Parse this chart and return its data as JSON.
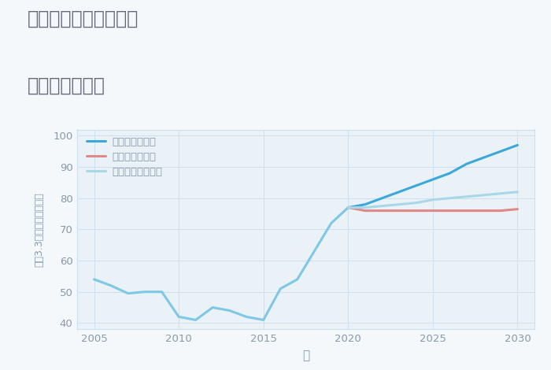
{
  "title_line1": "埼玉県八潮市木曽根の",
  "title_line2": "土地の価格推移",
  "xlabel": "年",
  "ylabel": "坪（3.3㎡）単価（万円）",
  "bg_color": "#f4f8fb",
  "plot_bg_color": "#eaf2f8",
  "grid_color": "#cce0ee",
  "historical_years": [
    2005,
    2006,
    2007,
    2008,
    2009,
    2010,
    2011,
    2012,
    2013,
    2014,
    2015,
    2016,
    2017,
    2018,
    2019,
    2020
  ],
  "historical_values": [
    54,
    52,
    49.5,
    50,
    50,
    42,
    41,
    45,
    44,
    42,
    41,
    51,
    54,
    63,
    72,
    77
  ],
  "good_years": [
    2020,
    2021,
    2022,
    2023,
    2024,
    2025,
    2026,
    2027,
    2028,
    2029,
    2030
  ],
  "good_values": [
    77,
    78,
    80,
    82,
    84,
    86,
    88,
    91,
    93,
    95,
    97
  ],
  "bad_years": [
    2020,
    2021,
    2022,
    2023,
    2024,
    2025,
    2026,
    2027,
    2028,
    2029,
    2030
  ],
  "bad_values": [
    77,
    76,
    76,
    76,
    76,
    76,
    76,
    76,
    76,
    76,
    76.5
  ],
  "normal_years": [
    2020,
    2021,
    2022,
    2023,
    2024,
    2025,
    2026,
    2027,
    2028,
    2029,
    2030
  ],
  "normal_values": [
    77,
    77,
    77.5,
    78,
    78.5,
    79.5,
    80,
    80.5,
    81,
    81.5,
    82
  ],
  "hist_color": "#7ec8e3",
  "good_color": "#3aa8d8",
  "bad_color": "#e08888",
  "normal_color": "#a8d8e8",
  "ylim": [
    38,
    102
  ],
  "yticks": [
    40,
    50,
    60,
    70,
    80,
    90,
    100
  ],
  "xlim": [
    2004,
    2031
  ],
  "xticks": [
    2005,
    2010,
    2015,
    2020,
    2025,
    2030
  ],
  "legend_labels": [
    "グッドシナリオ",
    "バッドシナリオ",
    "ノーマルシナリオ"
  ],
  "title_color": "#666677",
  "axis_color": "#8899aa",
  "tick_color": "#8899aa"
}
